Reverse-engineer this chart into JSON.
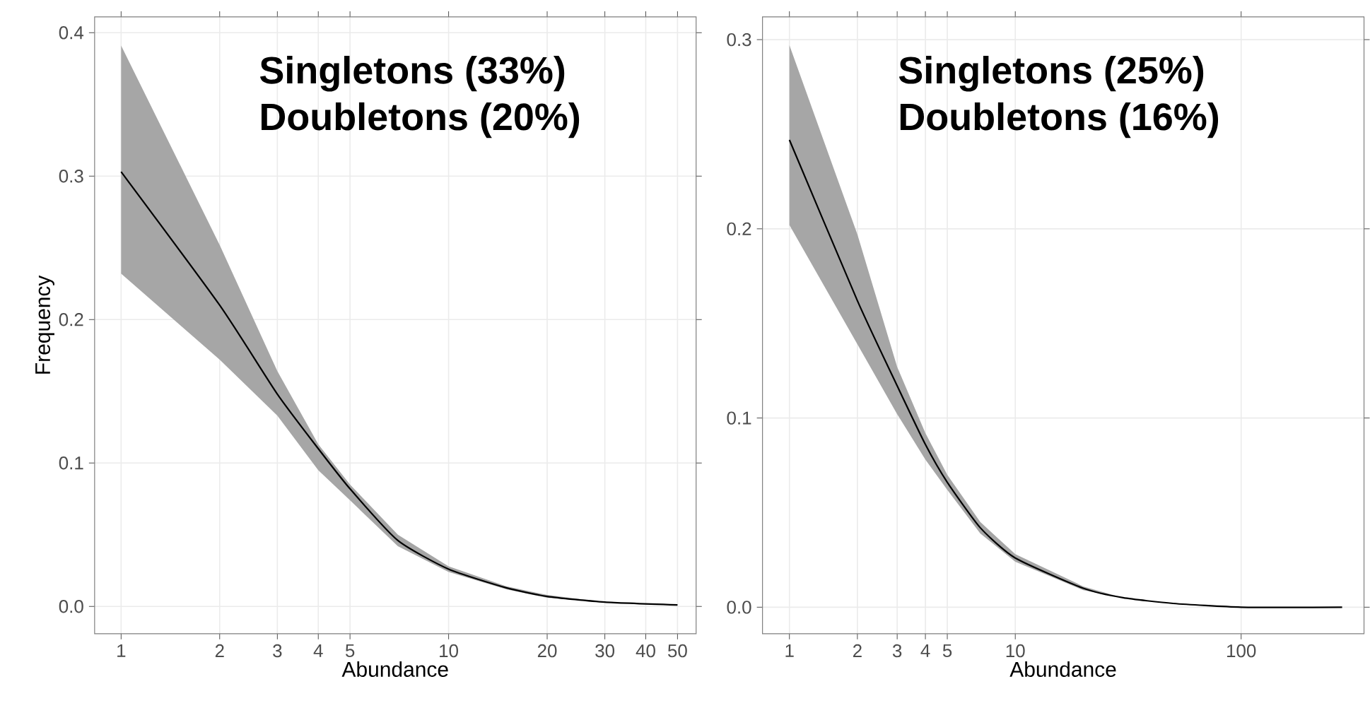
{
  "chart_data": [
    {
      "type": "line",
      "xlabel": "Abundance",
      "ylabel": "Frequency",
      "log": "x",
      "grid": true,
      "annotations": [
        "Singletons (33%)",
        "Doubletons (20%)"
      ],
      "xlim": [
        0.83,
        57
      ],
      "ylim": [
        -0.019,
        0.411
      ],
      "xticks": [
        1,
        2,
        3,
        4,
        5,
        10,
        20,
        30,
        40,
        50
      ],
      "yticks": [
        {
          "value": 0,
          "label": "0.0"
        },
        0.1,
        0.2,
        0.3,
        0.4
      ],
      "x": [
        1,
        2,
        3,
        4,
        5,
        7,
        10,
        15,
        20,
        30,
        50
      ],
      "series": [
        {
          "color": "#000000",
          "values": [
            0.303,
            0.21,
            0.148,
            0.11,
            0.082,
            0.046,
            0.026,
            0.013,
            0.007,
            0.003,
            0.001
          ],
          "lower": [
            0.232,
            0.172,
            0.133,
            0.095,
            0.074,
            0.042,
            0.024,
            0.012,
            0.006,
            0.003,
            0.001
          ],
          "upper": [
            0.391,
            0.252,
            0.164,
            0.113,
            0.085,
            0.05,
            0.028,
            0.014,
            0.008,
            0.003,
            0.001
          ]
        }
      ]
    },
    {
      "type": "line",
      "xlabel": "Abundance",
      "log": "x",
      "grid": true,
      "annotations": [
        "Singletons (25%)",
        "Doubletons (16%)"
      ],
      "xlim": [
        0.76,
        350
      ],
      "ylim": [
        -0.014,
        0.312
      ],
      "xticks": [
        1,
        2,
        3,
        4,
        5,
        10,
        100
      ],
      "yticks": [
        {
          "value": 0,
          "label": "0.0"
        },
        0.1,
        0.2,
        0.3
      ],
      "x": [
        1,
        2,
        3,
        4,
        5,
        7,
        10,
        20,
        30,
        50,
        100,
        280
      ],
      "series": [
        {
          "color": "#000000",
          "values": [
            0.247,
            0.162,
            0.117,
            0.086,
            0.066,
            0.042,
            0.026,
            0.01,
            0.005,
            0.002,
            0,
            0
          ],
          "lower": [
            0.202,
            0.139,
            0.102,
            0.078,
            0.062,
            0.039,
            0.024,
            0.009,
            0.005,
            0.002,
            0,
            0
          ],
          "upper": [
            0.297,
            0.197,
            0.127,
            0.092,
            0.07,
            0.045,
            0.028,
            0.011,
            0.005,
            0.002,
            0,
            0
          ]
        }
      ]
    }
  ]
}
